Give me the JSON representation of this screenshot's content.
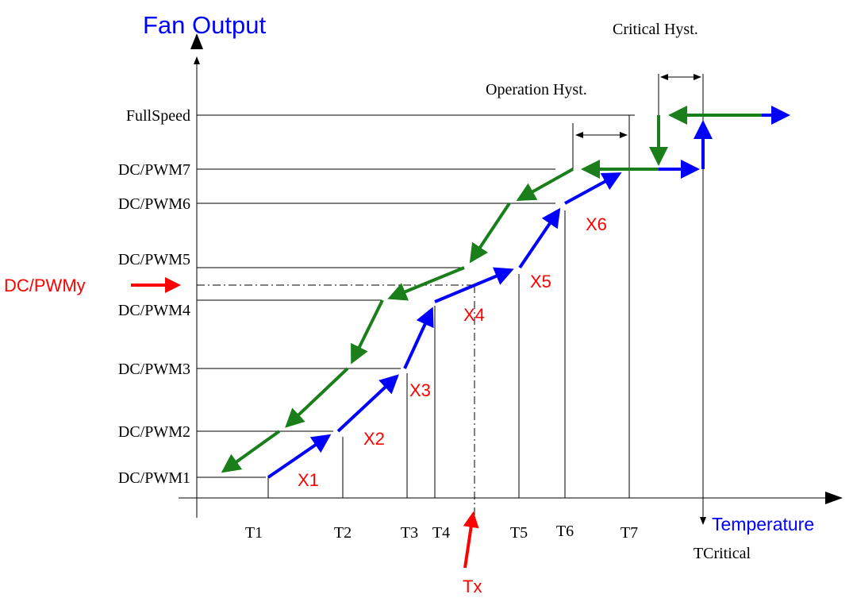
{
  "title": "Fan Output",
  "y_levels": [
    "FullSpeed",
    "DC/PWM7",
    "DC/PWM6",
    "DC/PWM5",
    "DC/PWM4",
    "DC/PWM3",
    "DC/PWM2",
    "DC/PWM1"
  ],
  "y_marker": "DC/PWMy",
  "x_axis_label": "Temperature",
  "temps": [
    "T1",
    "T2",
    "T3",
    "T4",
    "T5",
    "T6",
    "T7"
  ],
  "critical": "TCritical",
  "x_marker": "Tx",
  "points": [
    "X1",
    "X2",
    "X3",
    "X4",
    "X5",
    "X6"
  ],
  "hysteresis": {
    "critical": "Critical Hyst.",
    "operation": "Operation Hyst."
  }
}
